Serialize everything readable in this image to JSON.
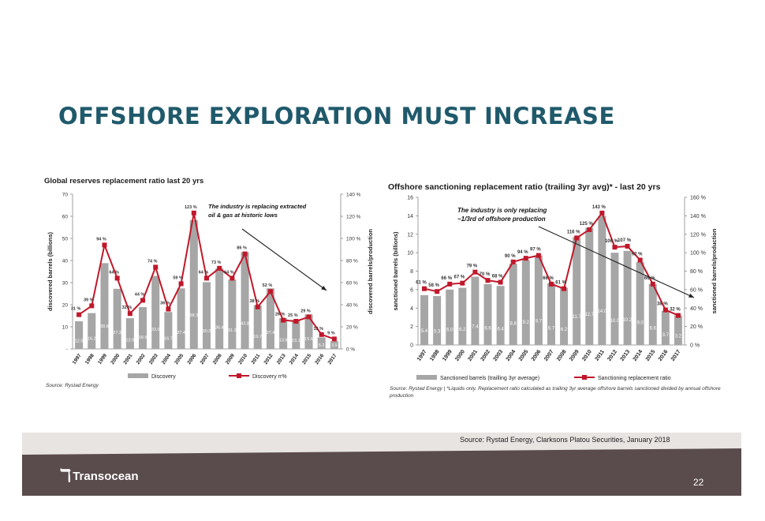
{
  "slide": {
    "title": "OFFSHORE EXPLORATION MUST INCREASE",
    "footer_source": "Source: Rystad Energy, Clarksons Platou Securities, January 2018",
    "logo_text": "Transocean",
    "page_number": "22"
  },
  "colors": {
    "bar": "#a6a6a6",
    "line": "#c0182a",
    "title": "#1f5a6b",
    "footer": "#5a4c4c"
  },
  "chart_data": [
    {
      "type": "bar",
      "title": "Global reserves replacement ratio last 20 yrs",
      "ylabel": "discovered barrels (billions)",
      "y2label": "discovered barrels/production",
      "ylim": [
        0,
        70
      ],
      "y2lim": [
        0,
        140
      ],
      "yticks": [
        "-",
        "10",
        "20",
        "30",
        "40",
        "50",
        "60",
        "70"
      ],
      "y2ticks": [
        "0 %",
        "20 %",
        "40 %",
        "60 %",
        "80 %",
        "100 %",
        "120 %",
        "140 %"
      ],
      "categories": [
        "1997",
        "1998",
        "1999",
        "2000",
        "2001",
        "2002",
        "2003",
        "2004",
        "2005",
        "2006",
        "2007",
        "2008",
        "2009",
        "2010",
        "2011",
        "2012",
        "2013",
        "2014",
        "2015",
        "2016",
        "2017"
      ],
      "series": [
        {
          "name": "Discovery",
          "kind": "bar",
          "values": [
            12.5,
            16.2,
            38.8,
            27.2,
            13.9,
            18.9,
            33.0,
            16.7,
            27.4,
            58.3,
            30.2,
            36.4,
            31.3,
            43.8,
            19.7,
            27.4,
            13.9,
            13.1,
            15.6,
            5.2,
            3.5
          ],
          "labels": [
            "12.5",
            "16.2",
            "38.8",
            "27.2",
            "13.9",
            "18.9",
            "33.0",
            "16.7",
            "27.4",
            "58.3",
            "30.2",
            "36.4",
            "31.3",
            "43.8",
            "19.7",
            "27.4",
            "13.9",
            "13.1",
            "15.6",
            "5.2",
            "3.5"
          ]
        },
        {
          "name": "Discovery rr%",
          "kind": "line",
          "axis": "y2",
          "values": [
            31,
            39,
            94,
            64,
            32,
            44,
            74,
            36,
            59,
            123,
            64,
            73,
            64,
            86,
            38,
            52,
            26,
            25,
            29,
            13,
            9
          ],
          "labels": [
            "31 %",
            "39 %",
            "94 %",
            "64 %",
            "32 %",
            "44 %",
            "74 %",
            "36 %",
            "59 %",
            "123 %",
            "64 %",
            "73 %",
            "64 %",
            "86 %",
            "38 %",
            "52 %",
            "26 %",
            "25 %",
            "29 %",
            "13 %",
            "9 %"
          ]
        }
      ],
      "annotation": "The industry is replacing extracted oil & gas at historic lows",
      "source": "Source: Rystad Energy",
      "legend_position": "bottom"
    },
    {
      "type": "bar",
      "title": "Offshore sanctioning replacement ratio (trailing 3yr avg)* - last 20 yrs",
      "ylabel": "sanctioned barrels (billions)",
      "y2label": "sanctioned barrels/production",
      "ylim": [
        0,
        16
      ],
      "y2lim": [
        0,
        160
      ],
      "yticks": [
        "0",
        "2",
        "4",
        "6",
        "8",
        "10",
        "12",
        "14",
        "16"
      ],
      "y2ticks": [
        "0 %",
        "20 %",
        "40 %",
        "60 %",
        "80 %",
        "100 %",
        "120 %",
        "140 %",
        "160 %"
      ],
      "categories": [
        "1997",
        "1998",
        "1999",
        "2000",
        "2001",
        "2002",
        "2003",
        "2004",
        "2005",
        "2006",
        "2007",
        "2008",
        "2009",
        "2010",
        "2011",
        "2012",
        "2013",
        "2014",
        "2015",
        "2016",
        "2017"
      ],
      "series": [
        {
          "name": "Sanctioned barrels (trailling 3yr average)",
          "kind": "bar",
          "values": [
            5.4,
            5.3,
            6.0,
            6.2,
            7.4,
            6.6,
            6.4,
            8.8,
            9.2,
            9.7,
            6.7,
            6.2,
            11.7,
            12.7,
            14.0,
            10.0,
            10.2,
            9.0,
            6.6,
            3.7,
            3.2
          ],
          "labels": [
            "5.4",
            "5.3",
            "6.0",
            "6.2",
            "7.4",
            "6.6",
            "6.4",
            "8.8",
            "9.2",
            "9.7",
            "6.7",
            "6.2",
            "11.7",
            "12.7",
            "14.0",
            "10.0",
            "10.2",
            "9.0",
            "6.6",
            "3.7",
            "3.2"
          ]
        },
        {
          "name": "Sanctioning replacement ratio",
          "kind": "line",
          "axis": "y2",
          "values": [
            61,
            58,
            66,
            67,
            79,
            70,
            68,
            90,
            94,
            97,
            66,
            61,
            116,
            125,
            143,
            106,
            107,
            92,
            66,
            38,
            32
          ],
          "labels": [
            "61 %",
            "58 %",
            "66 %",
            "67 %",
            "79 %",
            "70 %",
            "68 %",
            "90 %",
            "94 %",
            "97 %",
            "66 %",
            "61 %",
            "116 %",
            "125 %",
            "143 %",
            "106 %",
            "107 %",
            "92 %",
            "66 %",
            "38 %",
            "32 %"
          ]
        }
      ],
      "annotation": "The industry is only replacing ~1/3rd of offshore production",
      "source": "Source: Rystad Energy | *Liquids only. Replacement ratio calculated as trailing 3yr average offshore barrels sanctioned divided by annual offshore production",
      "legend_position": "bottom"
    }
  ]
}
